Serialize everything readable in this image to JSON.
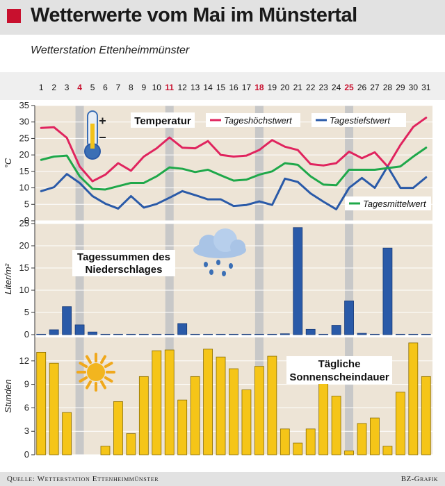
{
  "header": {
    "title": "Wetterwerte vom Mai im Münstertal"
  },
  "subtitle": "Wetterstation Ettenheimmünster",
  "footer": {
    "source": "Quelle: Wetterstation Ettenheimmünster",
    "credit": "BZ-Grafik"
  },
  "colors": {
    "accent": "#c8102e",
    "max": "#e0245e",
    "min": "#2a5aa8",
    "mean": "#1fa84a",
    "rain": "#2a5aa8",
    "sun": "#f5c518",
    "panel": "#ede4d6",
    "sunday": "#c8c8c8"
  },
  "chart_data": [
    {
      "type": "line",
      "title": "Temperatur",
      "ylabel": "°C",
      "ylim": [
        0,
        35
      ],
      "ticks": [
        0,
        5,
        10,
        15,
        20,
        25,
        30,
        35
      ],
      "x": [
        1,
        2,
        3,
        4,
        5,
        6,
        7,
        8,
        9,
        10,
        11,
        12,
        13,
        14,
        15,
        16,
        17,
        18,
        19,
        20,
        21,
        22,
        23,
        24,
        25,
        26,
        27,
        28,
        29,
        30,
        31
      ],
      "highlight_days": [
        4,
        11,
        18,
        25
      ],
      "series": [
        {
          "name": "Tageshöchstwert",
          "values": [
            28.2,
            28.4,
            25.2,
            16.5,
            12,
            14,
            17.5,
            15.2,
            19.5,
            22,
            25.3,
            22.2,
            22,
            24.2,
            20,
            19.5,
            19.8,
            21.5,
            24.5,
            22.5,
            21.5,
            17.2,
            16.8,
            17.5,
            21,
            19,
            20.8,
            16.5,
            23,
            28.5,
            31.3
          ]
        },
        {
          "name": "Tagestiefstwert",
          "values": [
            9,
            10.2,
            14.2,
            11.5,
            7.5,
            5.2,
            3.7,
            7.5,
            4,
            5.1,
            7,
            9,
            7.8,
            6.5,
            6.5,
            4.5,
            4.8,
            5.9,
            4.8,
            12.8,
            11.8,
            8.3,
            5.8,
            3.5,
            10,
            13,
            10,
            16.5,
            10,
            10,
            13.2
          ]
        },
        {
          "name": "Tagesmittelwert",
          "values": [
            18.5,
            19.5,
            19.8,
            13.5,
            9.7,
            9.5,
            10.5,
            11.5,
            11.5,
            13.5,
            16.2,
            15.8,
            14.8,
            15.5,
            13.8,
            12.2,
            12.5,
            14,
            15,
            17.5,
            17,
            13.5,
            11,
            10.8,
            15.5,
            15.5,
            15.5,
            16,
            16.5,
            19.5,
            22.2
          ]
        }
      ]
    },
    {
      "type": "bar",
      "title": "Tagessummen des Niederschlages",
      "ylabel": "Liter/m²",
      "ylim": [
        0,
        25
      ],
      "ticks": [
        0,
        5,
        10,
        15,
        20,
        25
      ],
      "x": [
        1,
        2,
        3,
        4,
        5,
        6,
        7,
        8,
        9,
        10,
        11,
        12,
        13,
        14,
        15,
        16,
        17,
        18,
        19,
        20,
        21,
        22,
        23,
        24,
        25,
        26,
        27,
        28,
        29,
        30,
        31
      ],
      "values": [
        0.1,
        1.1,
        6.3,
        2.2,
        0.6,
        0.1,
        0.1,
        0.1,
        0.1,
        0.1,
        0.1,
        2.5,
        0.1,
        0.1,
        0.1,
        0.1,
        0.1,
        0.1,
        0.1,
        0.2,
        24.1,
        1.2,
        0.1,
        2.1,
        7.6,
        0.3,
        0.1,
        19.5,
        0.1,
        0.1,
        0.1
      ]
    },
    {
      "type": "bar",
      "title": "Tägliche Sonnenscheindauer",
      "ylabel": "Stunden",
      "ylim": [
        0,
        15
      ],
      "ticks": [
        0,
        3,
        6,
        9,
        12
      ],
      "x": [
        1,
        2,
        3,
        4,
        5,
        6,
        7,
        8,
        9,
        10,
        11,
        12,
        13,
        14,
        15,
        16,
        17,
        18,
        19,
        20,
        21,
        22,
        23,
        24,
        25,
        26,
        27,
        28,
        29,
        30,
        31
      ],
      "values": [
        13.1,
        11.7,
        5.4,
        0,
        0,
        1.1,
        6.8,
        2.7,
        10,
        13.3,
        13.4,
        7,
        10,
        13.5,
        12.5,
        11,
        8.3,
        11.3,
        12.6,
        3.3,
        1.5,
        3.3,
        9.2,
        7.5,
        0.5,
        4,
        4.7,
        1.1,
        8,
        14.3,
        10
      ]
    }
  ]
}
